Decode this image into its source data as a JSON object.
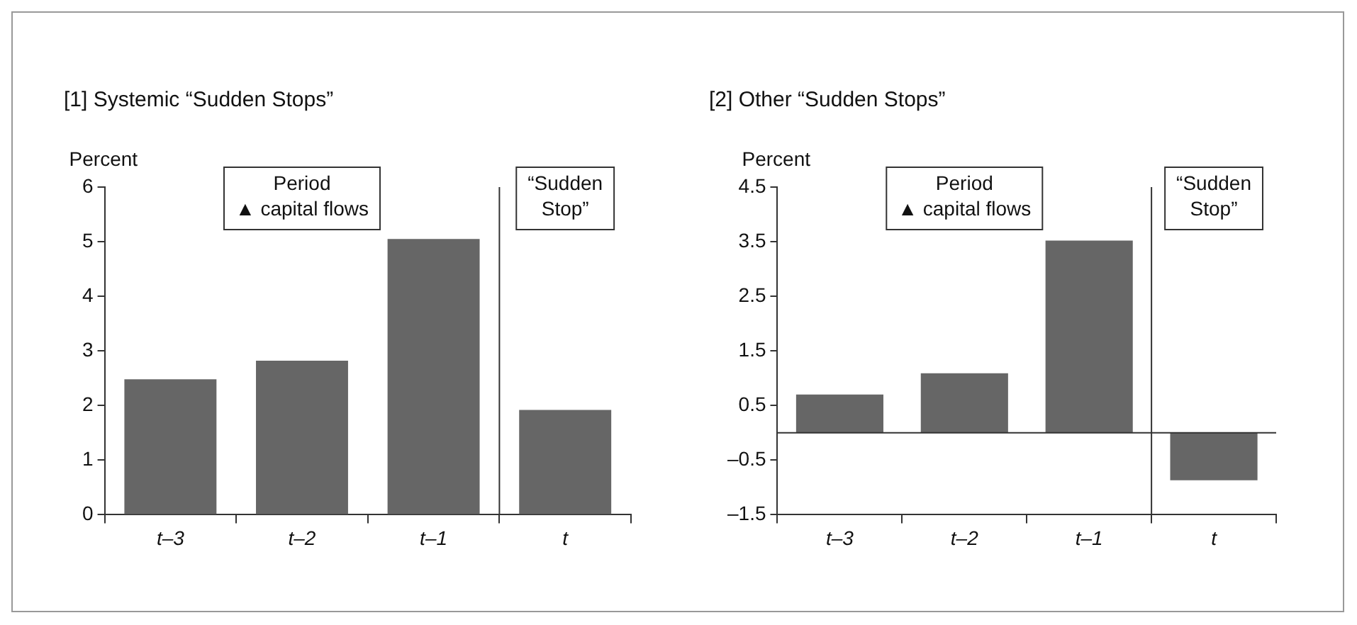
{
  "chart_data": [
    {
      "type": "bar",
      "title": "[1] Systemic “Sudden Stops”",
      "ylabel": "Percent",
      "categories": [
        "t–3",
        "t–2",
        "t–1",
        "t"
      ],
      "values": [
        2.48,
        2.82,
        5.05,
        1.92
      ],
      "color": "#666666",
      "ylim": [
        0,
        6
      ],
      "yticks": [
        0,
        1,
        2,
        3,
        4,
        5,
        6
      ],
      "grid": false,
      "annotations": [
        "Period\n▲ capital flows",
        "“Sudden\nStop”"
      ]
    },
    {
      "type": "bar",
      "title": "[2] Other “Sudden Stops”",
      "ylabel": "Percent",
      "categories": [
        "t–3",
        "t–2",
        "t–1",
        "t"
      ],
      "values": [
        0.7,
        1.09,
        3.52,
        -0.87
      ],
      "color": "#666666",
      "ylim": [
        -1.5,
        4.5
      ],
      "yticks": [
        {
          "value": -1.5,
          "label": "–1.5"
        },
        {
          "value": -0.5,
          "label": "–0.5"
        },
        0.5,
        1.5,
        2.5,
        3.5,
        4.5
      ],
      "grid": false,
      "ref_lines": [
        {
          "axis": "y",
          "value": 0,
          "color": "#333333"
        }
      ],
      "annotations": [
        "Period\n▲ capital flows",
        "“Sudden\nStop”"
      ]
    }
  ]
}
